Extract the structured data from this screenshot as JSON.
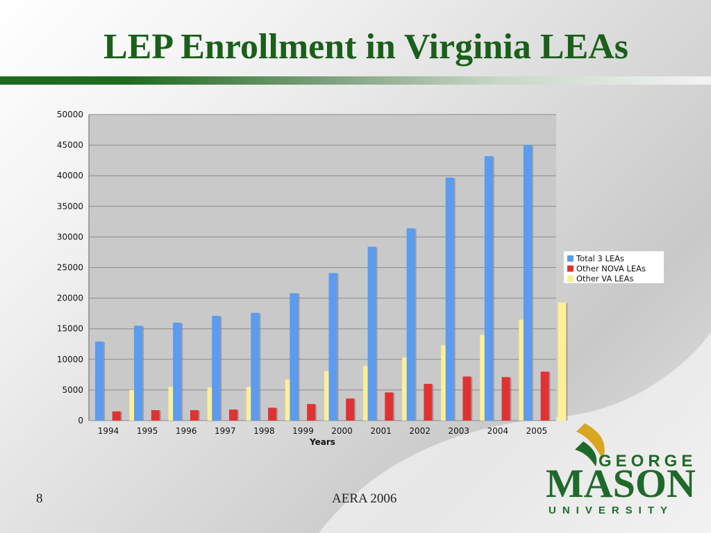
{
  "slide": {
    "title": "LEP Enrollment in Virginia LEAs",
    "number": "8",
    "footer": "AERA 2006"
  },
  "logo": {
    "word1": "GEORGE",
    "word2": "MASON",
    "word3": "UNIVERSITY",
    "colors": {
      "green": "#1f6a2a",
      "gold": "#d9a622"
    }
  },
  "colors": {
    "title": "#1a5f1a",
    "plot_bg": "#c9c9c9",
    "series_total": "#5b9bf0",
    "series_nova": "#e03232",
    "series_other": "#fbf096"
  },
  "chart_data": {
    "type": "bar",
    "title": "",
    "xlabel": "Years",
    "ylabel": "",
    "ylim": [
      0,
      50000
    ],
    "yticks": [
      0,
      5000,
      10000,
      15000,
      20000,
      25000,
      30000,
      35000,
      40000,
      45000,
      50000
    ],
    "grid": true,
    "legend_position": "right",
    "categories": [
      "1994",
      "1995",
      "1996",
      "1997",
      "1998",
      "1999",
      "2000",
      "2001",
      "2002",
      "2003",
      "2004",
      "2005"
    ],
    "series": [
      {
        "name": "Total 3 LEAs",
        "color": "#5b9bf0",
        "values": [
          12900,
          15500,
          16000,
          17100,
          17600,
          20800,
          24100,
          28400,
          31400,
          39700,
          43200,
          45000
        ]
      },
      {
        "name": "Other NOVA LEAs",
        "color": "#e03232",
        "values": [
          1500,
          1700,
          1700,
          1800,
          2100,
          2700,
          3600,
          4600,
          6000,
          7200,
          7100,
          8000
        ]
      },
      {
        "name": "Other VA LEAs",
        "color": "#fbf096",
        "values": [
          5000,
          5500,
          5400,
          5500,
          6700,
          8100,
          8900,
          10300,
          12300,
          14000,
          16500,
          19300
        ]
      }
    ]
  }
}
